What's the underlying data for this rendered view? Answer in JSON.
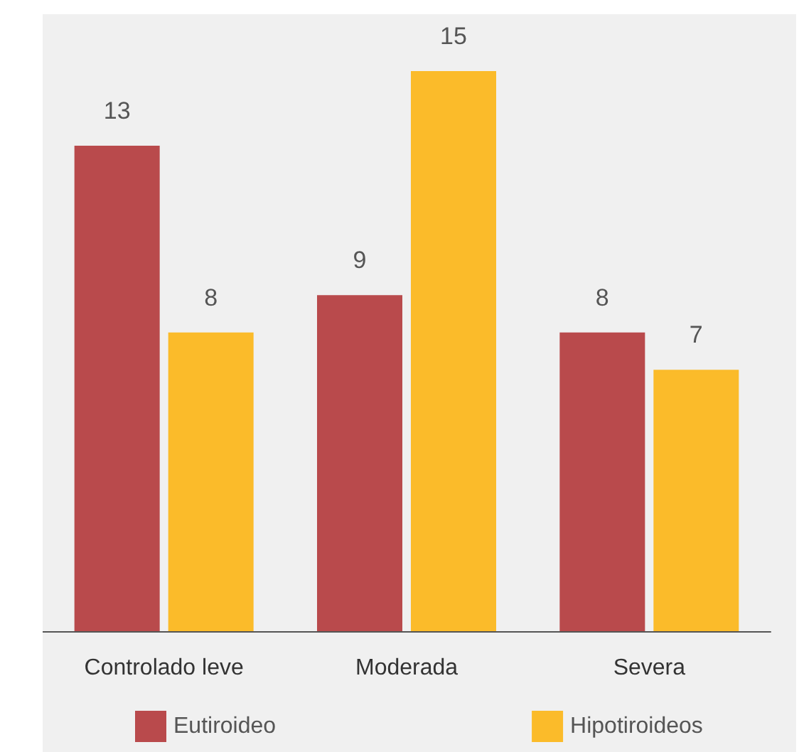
{
  "chart_data": {
    "type": "bar",
    "categories": [
      "Controlado leve",
      "Moderada",
      "Severa"
    ],
    "series": [
      {
        "name": "Eutiroideo",
        "color": "#b94a4c",
        "values": [
          13,
          9,
          8
        ]
      },
      {
        "name": "Hipotiroideos",
        "color": "#fbbb2a",
        "values": [
          8,
          15,
          7
        ]
      }
    ],
    "data_labels": true,
    "legend": "bottom"
  }
}
